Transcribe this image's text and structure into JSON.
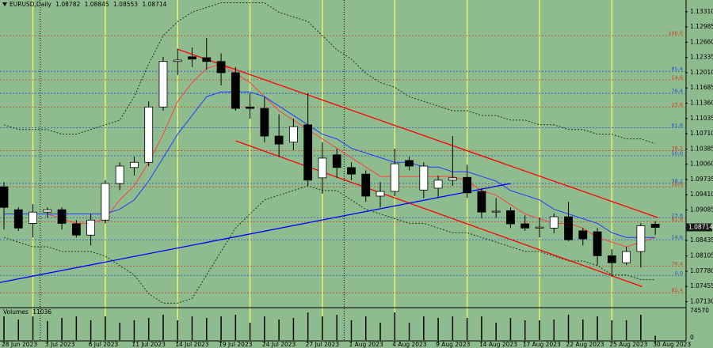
{
  "chart_data": {
    "type": "candlestick",
    "symbol": "EURUSD,Daily",
    "background": "#8fbc8f",
    "bull_color": "#ffffff",
    "bear_color": "#000000",
    "categories": [
      "28 Jun 2023",
      null,
      null,
      "3 Jul 2023",
      null,
      null,
      "6 Jul 2023",
      null,
      null,
      "11 Jul 2023",
      null,
      null,
      "14 Jul 2023",
      null,
      null,
      "19 Jul 2023",
      null,
      null,
      "24 Jul 2023",
      null,
      null,
      "27 Jul 2023",
      null,
      null,
      "1 Aug 2023",
      null,
      null,
      "4 Aug 2023",
      null,
      null,
      "9 Aug 2023",
      null,
      null,
      "14 Aug 2023",
      null,
      null,
      "17 Aug 2023",
      null,
      null,
      "22 Aug 2023",
      null,
      null,
      "25 Aug 2023",
      null,
      null,
      "30 Aug 2023"
    ],
    "open": [
      1.0958,
      1.0909,
      1.088,
      1.0904,
      1.0909,
      1.0879,
      1.0855,
      1.0887,
      1.0965,
      1.0999,
      1.101,
      1.1128,
      1.1225,
      1.1235,
      1.1233,
      1.1225,
      1.1201,
      1.1128,
      1.1125,
      1.1066,
      1.1053,
      1.109,
      1.0977,
      1.1026,
      1.0999,
      1.0985,
      1.0938,
      1.0948,
      1.1014,
      1.0951,
      1.0955,
      1.0972,
      1.0978,
      1.0948,
      1.0904,
      1.0907,
      1.0879,
      1.087,
      1.087,
      1.0894,
      1.0864,
      1.0862,
      1.0811,
      1.0796,
      1.082,
      1.08782
    ],
    "high": [
      1.0968,
      1.0914,
      1.0921,
      1.0914,
      1.0914,
      1.0887,
      1.0901,
      1.0972,
      1.101,
      1.1022,
      1.114,
      1.1235,
      1.1252,
      1.1255,
      1.1275,
      1.1242,
      1.1213,
      1.1157,
      1.115,
      1.1112,
      1.1103,
      1.1157,
      1.1053,
      1.1039,
      1.101,
      1.0993,
      1.0968,
      1.1039,
      1.1022,
      1.101,
      1.0982,
      1.1066,
      1.1005,
      1.0955,
      1.0934,
      1.0914,
      1.0897,
      1.0892,
      1.0901,
      1.0926,
      1.087,
      1.087,
      1.0825,
      1.083,
      1.088,
      1.08845
    ],
    "low": [
      1.0867,
      1.0864,
      1.085,
      1.0892,
      1.0867,
      1.085,
      1.0833,
      1.088,
      1.0951,
      1.0982,
      1.1002,
      1.112,
      1.1196,
      1.1213,
      1.1208,
      1.1174,
      1.112,
      1.1103,
      1.1053,
      1.1022,
      1.1036,
      1.096,
      1.0943,
      1.0977,
      1.0972,
      1.0926,
      1.0914,
      1.0938,
      1.0993,
      1.0934,
      1.0934,
      1.096,
      1.0934,
      1.0891,
      1.0892,
      1.087,
      1.0864,
      1.085,
      1.0859,
      1.0842,
      1.0833,
      1.0791,
      1.0766,
      1.0791,
      1.0786,
      1.08553
    ],
    "close": [
      1.0914,
      1.087,
      1.0904,
      1.0909,
      1.088,
      1.0855,
      1.0887,
      1.0965,
      1.1002,
      1.101,
      1.1128,
      1.1225,
      1.1228,
      1.123,
      1.1225,
      1.1201,
      1.1125,
      1.1125,
      1.1066,
      1.1049,
      1.1086,
      1.0972,
      1.1019,
      1.0999,
      1.0985,
      1.0938,
      1.0948,
      1.1007,
      1.1002,
      1.1002,
      1.0972,
      1.0977,
      1.0945,
      1.0904,
      1.0906,
      1.0879,
      1.087,
      1.0872,
      1.0894,
      1.0845,
      1.0847,
      1.0811,
      1.0796,
      1.082,
      1.0875,
      1.08714
    ],
    "ylim": [
      1.0702,
      1.1356
    ],
    "yticks": [
      {
        "value": 1.1331,
        "label": "1.13310"
      },
      1.12985,
      {
        "value": 1.1266,
        "label": "1.12660"
      },
      1.12335,
      {
        "value": 1.1201,
        "label": "1.12010"
      },
      1.11685,
      {
        "value": 1.1136,
        "label": "1.11360"
      },
      1.11035,
      {
        "value": 1.1071,
        "label": "1.10710"
      },
      1.10385,
      {
        "value": 1.1006,
        "label": "1.10060"
      },
      1.09735,
      {
        "value": 1.0941,
        "label": "1.09410"
      },
      1.09085,
      1.08435,
      1.08105,
      {
        "value": 1.0778,
        "label": "1.07780"
      },
      1.07455,
      {
        "value": 1.0713,
        "label": "1.07130"
      }
    ],
    "overlays": [
      {
        "color": "#ff4040",
        "dash": "none",
        "values": [
          1.09,
          1.09,
          1.09,
          1.09,
          1.089,
          1.088,
          1.088,
          1.089,
          1.093,
          1.096,
          1.101,
          1.107,
          1.114,
          1.118,
          1.121,
          1.122,
          1.12,
          1.118,
          1.115,
          1.112,
          1.11,
          1.108,
          1.106,
          1.104,
          1.102,
          1.1,
          1.098,
          1.098,
          1.098,
          1.098,
          1.098,
          1.098,
          1.097,
          1.095,
          1.094,
          1.092,
          1.09,
          1.089,
          1.088,
          1.088,
          1.087,
          1.085,
          1.084,
          1.083,
          1.084,
          1.085
        ]
      },
      {
        "color": "#1e3cff",
        "dash": "none",
        "values": [
          1.09,
          1.09,
          1.09,
          1.09,
          1.09,
          1.09,
          1.09,
          1.09,
          1.091,
          1.093,
          1.097,
          1.102,
          1.107,
          1.111,
          1.115,
          1.116,
          1.116,
          1.116,
          1.115,
          1.113,
          1.111,
          1.109,
          1.107,
          1.106,
          1.104,
          1.103,
          1.102,
          1.101,
          1.101,
          1.1,
          1.1,
          1.099,
          1.099,
          1.098,
          1.097,
          1.095,
          1.094,
          1.093,
          1.091,
          1.09,
          1.089,
          1.088,
          1.086,
          1.085,
          1.085,
          1.085
        ]
      },
      {
        "color": "#1a3a1a",
        "dash": "2 2",
        "values": [
          1.109,
          1.108,
          1.108,
          1.108,
          1.107,
          1.107,
          1.108,
          1.109,
          1.11,
          1.115,
          1.122,
          1.128,
          1.131,
          1.133,
          1.134,
          1.135,
          1.135,
          1.135,
          1.135,
          1.133,
          1.132,
          1.131,
          1.128,
          1.125,
          1.123,
          1.12,
          1.118,
          1.117,
          1.115,
          1.114,
          1.113,
          1.112,
          1.112,
          1.111,
          1.111,
          1.11,
          1.11,
          1.109,
          1.109,
          1.108,
          1.108,
          1.107,
          1.107,
          1.106,
          1.106,
          1.105
        ]
      },
      {
        "color": "#1a3a1a",
        "dash": "2 2",
        "values": [
          1.085,
          1.084,
          1.083,
          1.083,
          1.082,
          1.082,
          1.082,
          1.081,
          1.079,
          1.077,
          1.073,
          1.071,
          1.071,
          1.072,
          1.077,
          1.082,
          1.087,
          1.09,
          1.093,
          1.094,
          1.095,
          1.096,
          1.095,
          1.095,
          1.093,
          1.091,
          1.09,
          1.089,
          1.088,
          1.088,
          1.087,
          1.086,
          1.086,
          1.085,
          1.084,
          1.083,
          1.082,
          1.082,
          1.081,
          1.08,
          1.08,
          1.079,
          1.077,
          1.077,
          1.076,
          1.076
        ]
      }
    ],
    "levels": [
      {
        "price": 1.128,
        "label": "100.0",
        "color": "#d04020"
      },
      {
        "price": 1.1204,
        "label": "85.4",
        "color": "#2050d0"
      },
      {
        "price": 1.1186,
        "label": "14.6",
        "color": "#d04020"
      },
      {
        "price": 1.1157,
        "label": "76.4",
        "color": "#2050d0"
      },
      {
        "price": 1.1128,
        "label": "23.6",
        "color": "#d04020"
      },
      {
        "price": 1.1084,
        "label": "61.8",
        "color": "#2050d0"
      },
      {
        "price": 1.1035,
        "label": "38.2",
        "color": "#d04020"
      },
      {
        "price": 1.1024,
        "label": "50.0",
        "color": "#2050d0"
      },
      {
        "price": 1.0965,
        "label": "38.2",
        "color": "#2050d0"
      },
      {
        "price": 1.0958,
        "label": "50.0",
        "color": "#d04020"
      },
      {
        "price": 1.0892,
        "label": "23.6",
        "color": "#2050d0"
      },
      {
        "price": 1.0883,
        "label": "61.8",
        "color": "#d04020"
      },
      {
        "price": 1.0845,
        "label": "14.6",
        "color": "#2050d0"
      },
      {
        "price": 1.0789,
        "label": "76.4",
        "color": "#d04020"
      },
      {
        "price": 1.0769,
        "label": "0.0",
        "color": "#2050d0"
      },
      {
        "price": 1.0732,
        "label": "85.4",
        "color": "#d04020"
      }
    ],
    "trendlines": [
      {
        "color": "#ff0000",
        "points": [
          [
            12,
            1.1251
          ],
          [
            45.2,
            1.0892
          ]
        ]
      },
      {
        "color": "#ff0000",
        "points": [
          [
            16,
            1.1056
          ],
          [
            44.1,
            1.0745
          ]
        ]
      },
      {
        "color": "#0000ff",
        "points": [
          [
            -0.27,
            1.0754
          ],
          [
            35,
            1.0965
          ]
        ]
      }
    ],
    "volume": {
      "label": "Volumes",
      "values": [
        60450,
        52390,
        60450,
        48360,
        56420,
        60450,
        50380,
        60450,
        44330,
        50380,
        56420,
        64480,
        50380,
        60450,
        56420,
        60450,
        64480,
        44330,
        60450,
        52390,
        56420,
        70530,
        60450,
        64480,
        50380,
        60450,
        44330,
        70530,
        44330,
        60450,
        56420,
        60450,
        56420,
        60450,
        44330,
        56420,
        50380,
        50380,
        52390,
        64480,
        52390,
        60450,
        50380,
        50380,
        64480,
        11036
      ],
      "ylim": [
        0,
        74570
      ],
      "yticks": [
        74570,
        0
      ]
    }
  }
}
